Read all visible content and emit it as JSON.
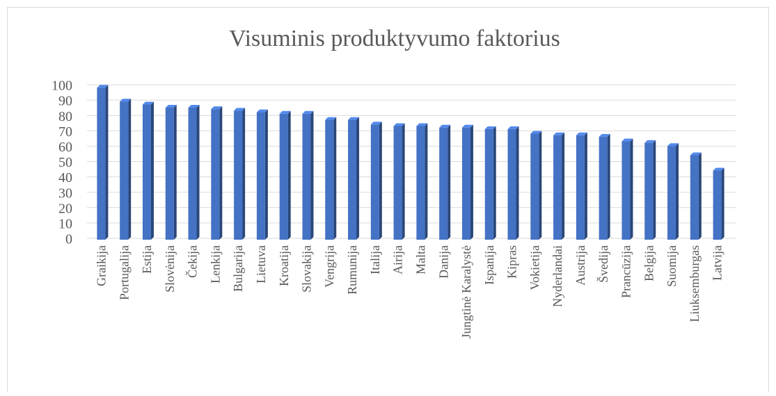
{
  "chart_data": {
    "type": "bar",
    "title": "Visuminis produktyvumo faktorius",
    "categories": [
      "Graikija",
      "Portugalija",
      "Estija",
      "Slovėnija",
      "Čekija",
      "Lenkija",
      "Bulgarija",
      "Lietuva",
      "Kroatija",
      "Slovakija",
      "Vengrija",
      "Rumunija",
      "Italija",
      "Airija",
      "Malta",
      "Danija",
      "Jungtinė Karalystė",
      "Ispanija",
      "Kipras",
      "Vokietija",
      "Nyderlandai",
      "Austrija",
      "Švedija",
      "Prancūzija",
      "Belgija",
      "Suomija",
      "Liuksemburgas",
      "Latvija"
    ],
    "values": [
      99,
      90,
      88,
      86,
      86,
      85,
      84,
      83,
      82,
      82,
      78,
      78,
      75,
      74,
      74,
      73,
      73,
      72,
      72,
      69,
      68,
      68,
      67,
      64,
      63,
      61,
      55,
      45
    ],
    "color": "#4472c4",
    "ylim": [
      0,
      100
    ],
    "yticks": [
      0,
      10,
      20,
      30,
      40,
      50,
      60,
      70,
      80,
      90,
      100
    ],
    "grid": true
  }
}
